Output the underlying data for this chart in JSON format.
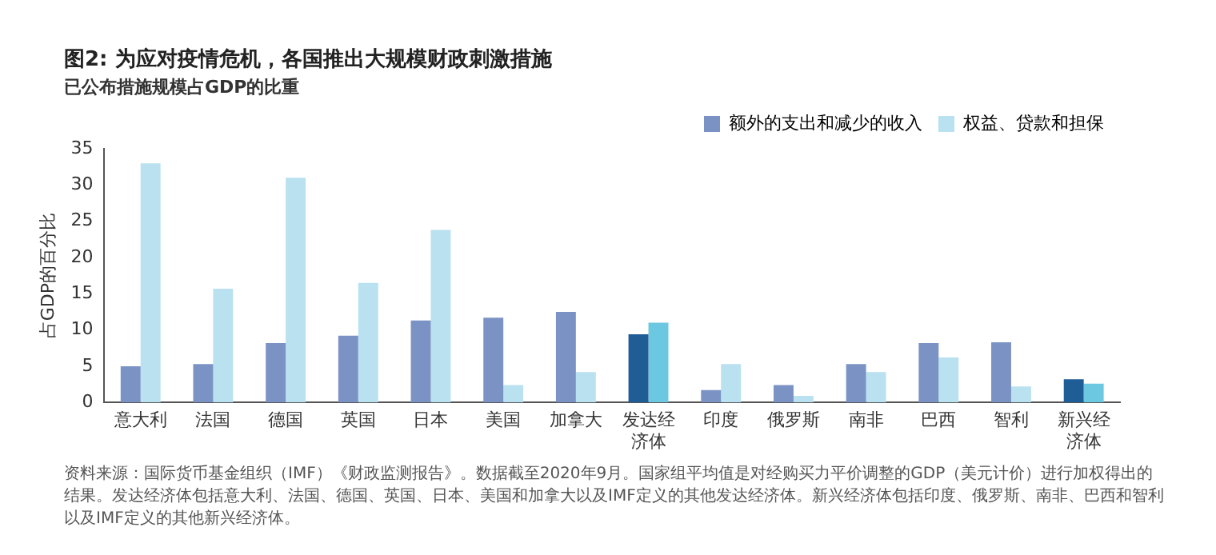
{
  "chart_data": {
    "type": "bar",
    "title": "图2: 为应对疫情危机，各国推出大规模财政刺激措施",
    "subtitle": "已公布措施规模占GDP的比重",
    "ylabel": "占GDP的百分比",
    "categories": [
      "意大利",
      "法国",
      "德国",
      "英国",
      "日本",
      "美国",
      "加拿大",
      "发达经济体",
      "印度",
      "俄罗斯",
      "南非",
      "巴西",
      "智利",
      "新兴经济体"
    ],
    "series": [
      {
        "name": "额外的支出和减少的收入",
        "color": "#7b93c4",
        "colors": [
          "#7b93c4",
          "#7b93c4",
          "#7b93c4",
          "#7b93c4",
          "#7b93c4",
          "#7b93c4",
          "#7b93c4",
          "#1f5d96",
          "#7b93c4",
          "#7b93c4",
          "#7b93c4",
          "#7b93c4",
          "#7b93c4",
          "#1f5d96"
        ],
        "values": [
          5,
          5.3,
          8.2,
          9.2,
          11.3,
          11.7,
          12.5,
          9.4,
          1.7,
          2.4,
          5.3,
          8.2,
          8.3,
          3.2
        ]
      },
      {
        "name": "权益、贷款和担保",
        "color": "#b9e1ef",
        "colors": [
          "#b9e1ef",
          "#b9e1ef",
          "#b9e1ef",
          "#b9e1ef",
          "#b9e1ef",
          "#b9e1ef",
          "#b9e1ef",
          "#6cc8e0",
          "#b9e1ef",
          "#b9e1ef",
          "#b9e1ef",
          "#b9e1ef",
          "#b9e1ef",
          "#6cc8e0"
        ],
        "values": [
          33,
          15.7,
          31,
          16.5,
          23.8,
          2.4,
          4.2,
          11,
          5.3,
          0.9,
          4.2,
          6.2,
          2.2,
          2.6
        ]
      }
    ],
    "ylim": [
      0,
      35
    ],
    "yticks": [
      0,
      5,
      10,
      15,
      20,
      25,
      30,
      35
    ],
    "grid": false,
    "legend": "top right",
    "annotations": [
      "资料来源：国际货币基金组织（IMF）《财政监测报告》。数据截至2020年9月。国家组平均值是对经购买力平价调整的GDP（美元计价）进行加权得出的结果。发达经济体包括意大利、法国、德国、英国、日本、美国和加拿大以及IMF定义的其他发达经济体。新兴经济体包括印度、俄罗斯、南非、巴西和智利以及IMF定义的其他新兴经济体。"
    ]
  }
}
